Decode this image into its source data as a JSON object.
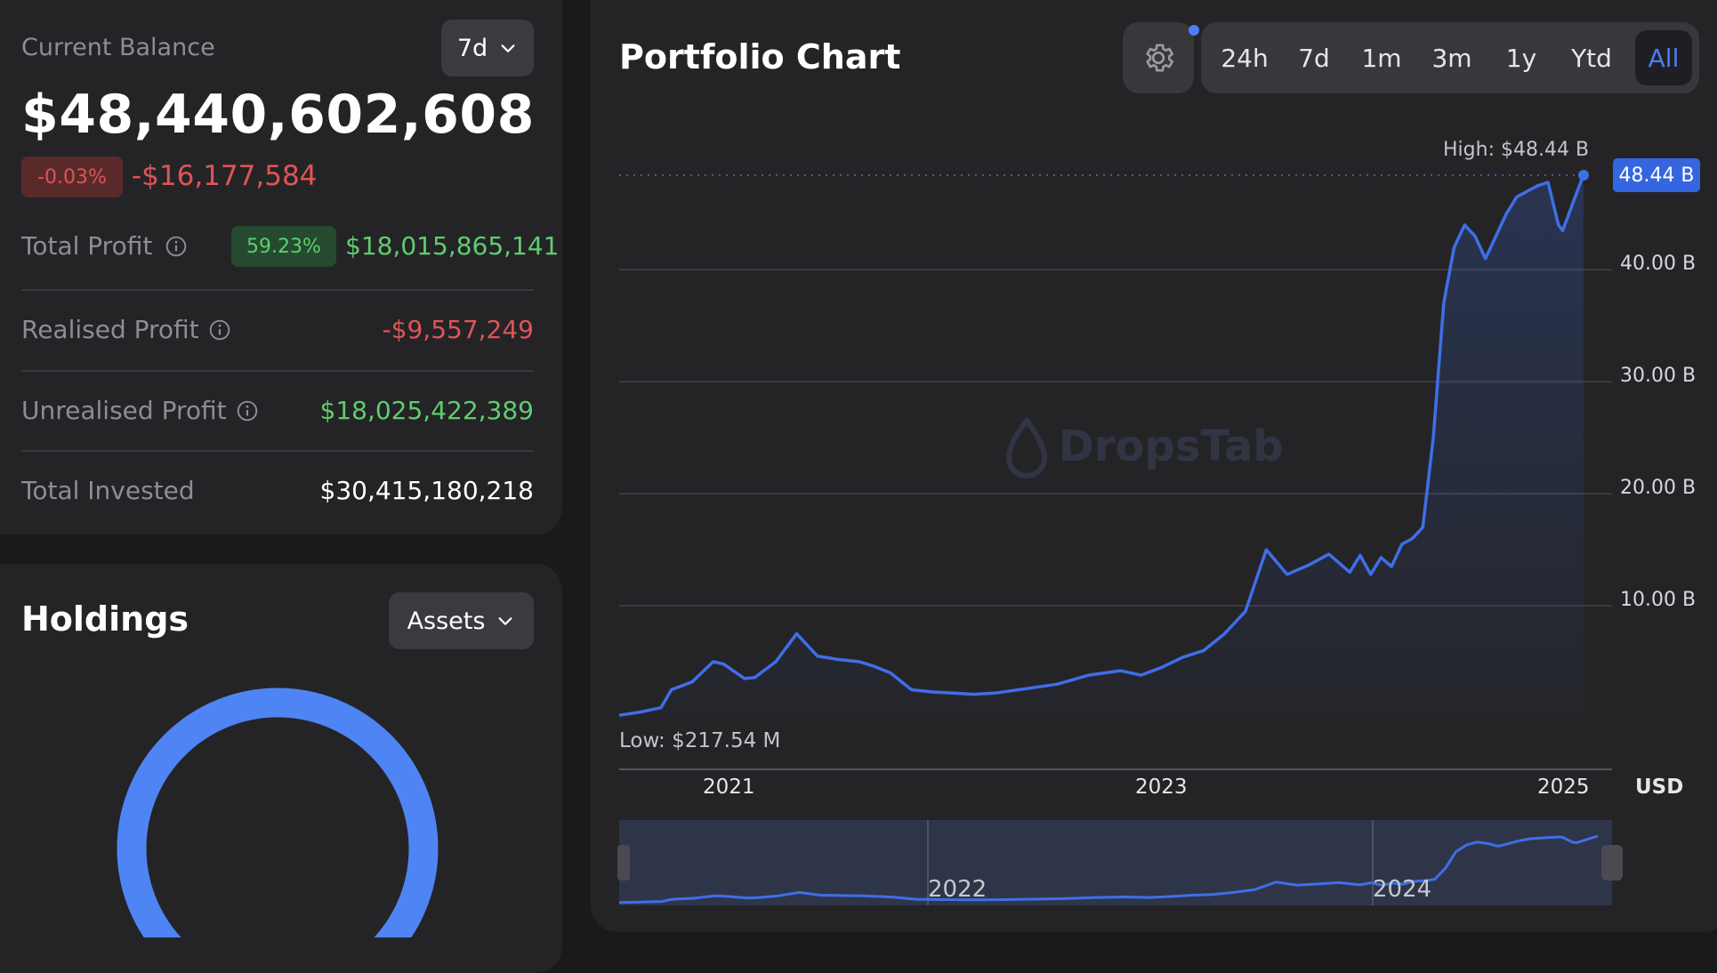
{
  "balance": {
    "label": "Current Balance",
    "period": "7d",
    "amount": "$48,440,602,608",
    "change_pct": "-0.03%",
    "change_abs": "-$16,177,584",
    "rows": [
      {
        "label": "Total Profit",
        "badge": "59.23%",
        "value": "$18,015,865,141"
      },
      {
        "label": "Realised Profit",
        "value": "-$9,557,249"
      },
      {
        "label": "Unrealised Profit",
        "value": "$18,025,422,389"
      },
      {
        "label": "Total Invested",
        "value": "$30,415,180,218"
      }
    ]
  },
  "holdings": {
    "title": "Holdings",
    "filter": "Assets",
    "donut_color": "#4f84f4"
  },
  "chart": {
    "title": "Portfolio Chart",
    "ranges": [
      "24h",
      "7d",
      "1m",
      "3m",
      "1y",
      "Ytd",
      "All"
    ],
    "active_range": "All",
    "watermark": "DropsTab",
    "high_label": "High: $48.44 B",
    "low_label": "Low: $217.54 M",
    "current_tag": "48.44 B",
    "currency": "USD",
    "nav_labels": [
      "2022",
      "2024"
    ],
    "colors": {
      "line": "#3f6ee8",
      "accent": "#4d7cf6",
      "tag_bg": "#3566e0"
    }
  },
  "chart_data": {
    "type": "area",
    "ylim": [
      0,
      48.44
    ],
    "y_ticks": [
      "10.00 B",
      "20.00 B",
      "30.00 B",
      "40.00 B"
    ],
    "y_tick_values": [
      10,
      20,
      30,
      40
    ],
    "x_ticks": [
      "2021",
      "2023",
      "2025"
    ],
    "x_tick_values": [
      2021,
      2023,
      2025
    ],
    "xlim": [
      2020.5,
      2025.12
    ],
    "x": [
      2020.5,
      2020.6,
      2020.7,
      2020.75,
      2020.85,
      2020.95,
      2021.0,
      2021.1,
      2021.15,
      2021.25,
      2021.35,
      2021.45,
      2021.55,
      2021.65,
      2021.72,
      2021.8,
      2021.9,
      2022.0,
      2022.1,
      2022.2,
      2022.3,
      2022.45,
      2022.6,
      2022.75,
      2022.9,
      2023.0,
      2023.1,
      2023.2,
      2023.3,
      2023.4,
      2023.5,
      2023.6,
      2023.7,
      2023.8,
      2023.9,
      2024.0,
      2024.05,
      2024.1,
      2024.15,
      2024.2,
      2024.25,
      2024.3,
      2024.35,
      2024.4,
      2024.45,
      2024.5,
      2024.55,
      2024.6,
      2024.65,
      2024.7,
      2024.75,
      2024.8,
      2024.85,
      2024.9,
      2024.95,
      2025.0,
      2025.02,
      2025.05,
      2025.08,
      2025.1,
      2025.12
    ],
    "y": [
      0.22,
      0.5,
      0.9,
      2.5,
      3.2,
      5.0,
      4.8,
      3.5,
      3.6,
      5.0,
      7.5,
      5.5,
      5.2,
      5.0,
      4.6,
      4.0,
      2.5,
      2.3,
      2.2,
      2.1,
      2.2,
      2.6,
      3.0,
      3.8,
      4.2,
      3.8,
      4.5,
      5.4,
      6.0,
      7.5,
      9.5,
      15.0,
      12.8,
      13.6,
      14.6,
      13.0,
      14.5,
      12.8,
      14.3,
      13.5,
      15.5,
      16.0,
      17.0,
      25.0,
      37.0,
      42.0,
      44.0,
      43.0,
      41.0,
      43.0,
      45.0,
      46.5,
      47.0,
      47.5,
      47.8,
      44.0,
      43.5,
      45.0,
      46.5,
      47.5,
      48.44
    ]
  }
}
